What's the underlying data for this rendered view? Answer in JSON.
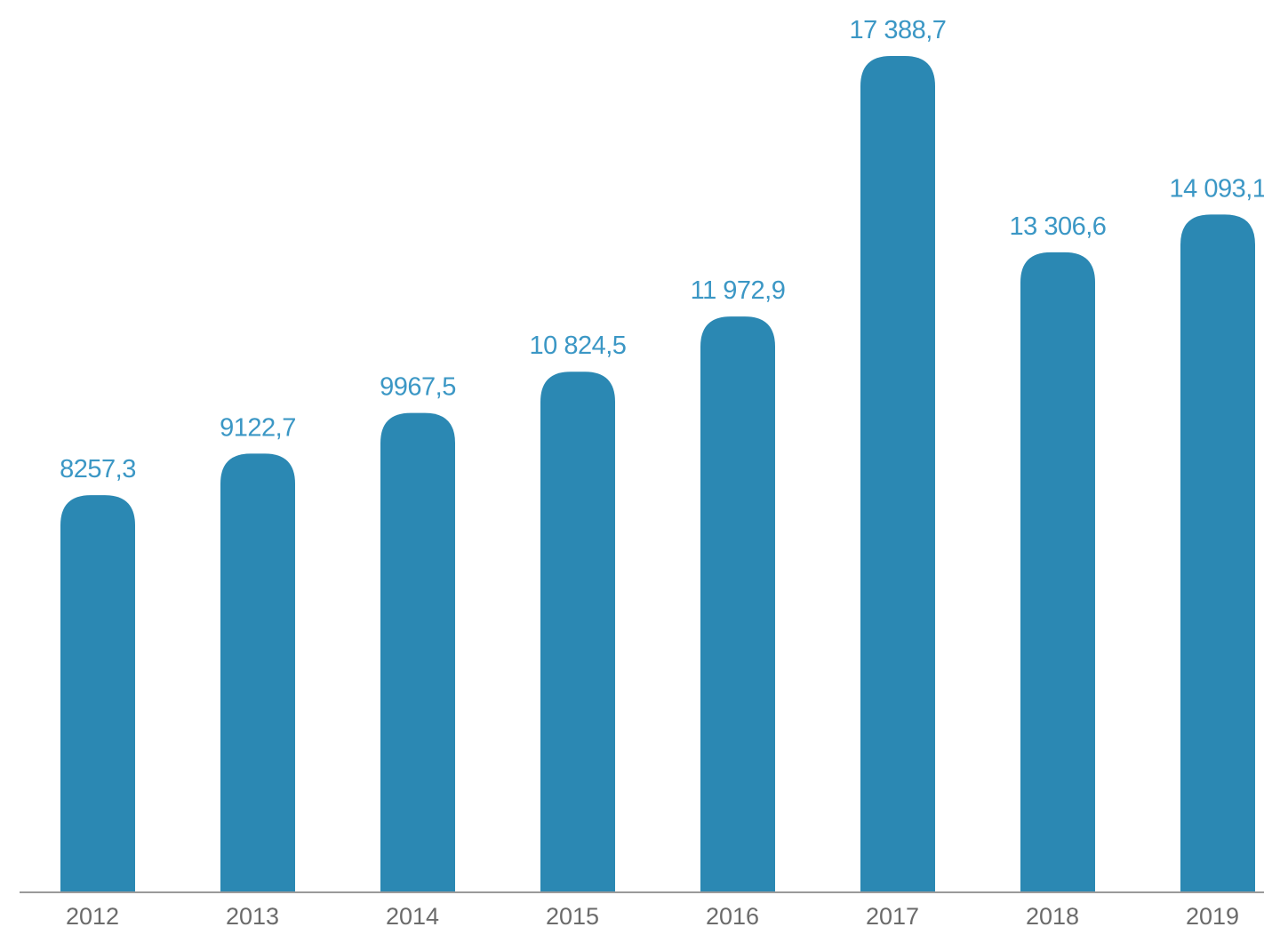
{
  "chart_data": {
    "type": "bar",
    "categories": [
      "2012",
      "2013",
      "2014",
      "2015",
      "2016",
      "2017",
      "2018",
      "2019"
    ],
    "values": [
      8257.3,
      9122.7,
      9967.5,
      10824.5,
      11972.9,
      17388.7,
      13306.6,
      14093.1
    ],
    "value_labels": [
      "8257,3",
      "9122,7",
      "9967,5",
      "10 824,5",
      "11 972,9",
      "17 388,7",
      "13 306,6",
      "14 093,1"
    ],
    "title": "",
    "xlabel": "",
    "ylabel": "",
    "ylim": [
      0,
      17388.7
    ],
    "grid": false,
    "legend": "none",
    "bar_color": "#2b88b3",
    "label_color": "#3b97c5"
  }
}
